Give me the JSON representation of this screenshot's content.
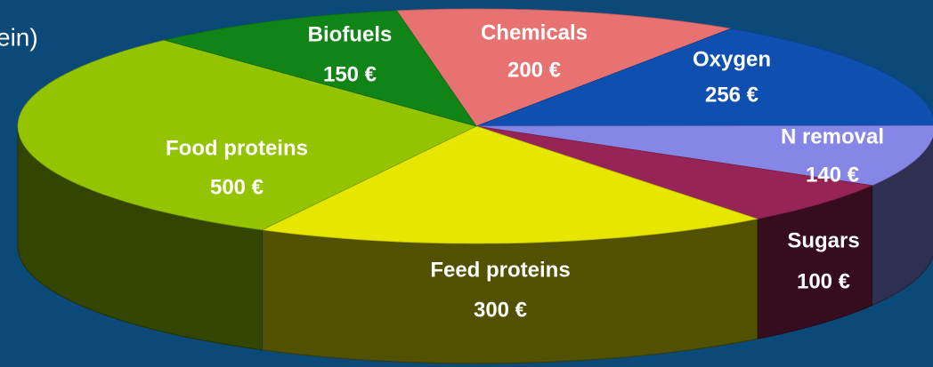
{
  "chart_data": {
    "type": "pie3d",
    "title": "ein)",
    "categories": [
      "Chemicals",
      "Oxygen",
      "N removal",
      "Sugars",
      "Feed proteins",
      "Food proteins",
      "Biofuels"
    ],
    "values": [
      200,
      256,
      140,
      100,
      300,
      500,
      150
    ],
    "value_labels": [
      "200 €",
      "256 €",
      "140 €",
      "100 €",
      "300 €",
      "500 €",
      "150  €"
    ],
    "colors": [
      "#e87272",
      "#0f4fb0",
      "#8686e6",
      "#962456",
      "#e6e600",
      "#94c400",
      "#118418"
    ]
  }
}
